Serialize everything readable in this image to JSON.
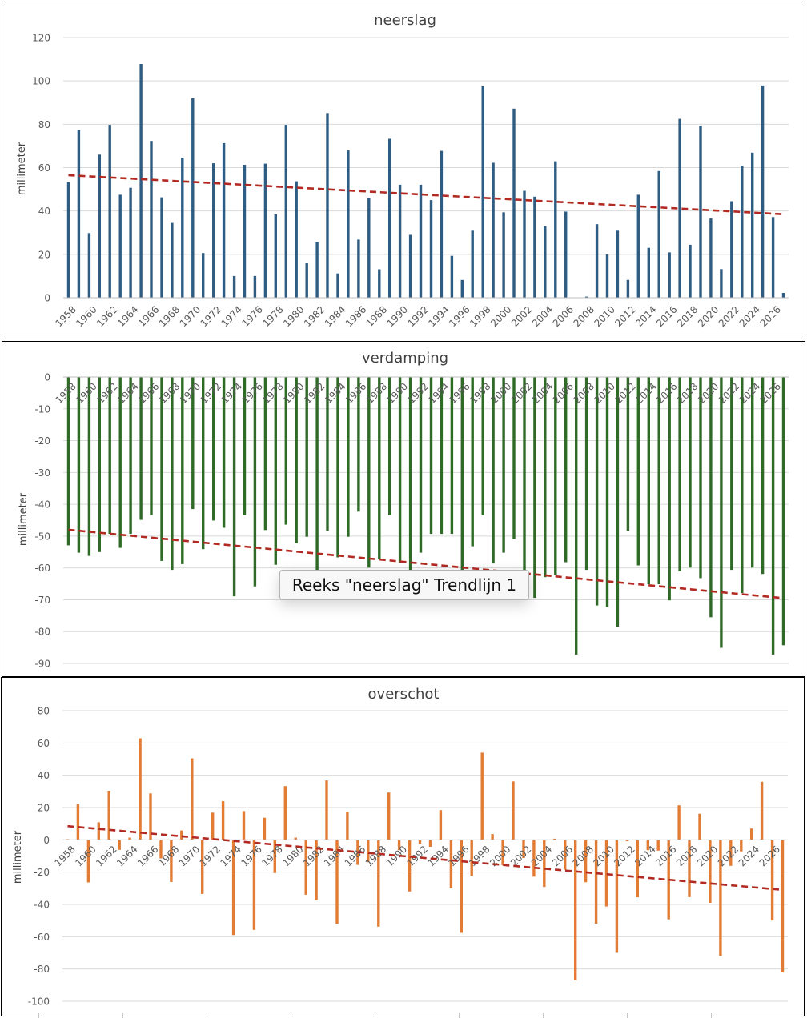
{
  "chart_data": [
    {
      "type": "bar",
      "title": "neerslag",
      "ylabel": "millimeter",
      "ylim": [
        0,
        120
      ],
      "yticks": [
        0,
        20,
        40,
        60,
        80,
        100,
        120
      ],
      "grid": true,
      "color": "#2e5c82",
      "trend_color": "#b22a22",
      "trend": {
        "start": 56.5,
        "end": 38.5
      },
      "x_start": 1958,
      "x_end": 2026,
      "values": [
        53.3,
        77.4,
        29.8,
        66.0,
        79.7,
        47.5,
        50.7,
        107.8,
        72.3,
        46.3,
        34.5,
        64.6,
        92.0,
        20.6,
        62.0,
        71.3,
        10.0,
        61.3,
        10.0,
        61.8,
        38.4,
        79.7,
        53.7,
        16.2,
        25.8,
        85.2,
        11.2,
        67.9,
        26.8,
        46.1,
        13.1,
        73.3,
        52.1,
        29.0,
        52.1,
        45.0,
        67.7,
        19.3,
        8.2,
        30.9,
        97.5,
        62.2,
        39.4,
        87.2,
        49.3,
        46.6,
        33.0,
        62.9,
        39.7,
        0.1,
        0.5,
        33.9,
        20.0,
        30.9,
        8.2,
        47.5,
        23.0,
        58.4,
        20.9,
        82.5,
        24.4,
        79.4,
        36.5,
        13.2,
        44.5,
        60.7,
        66.9,
        97.9,
        37.2,
        2.2
      ]
    },
    {
      "type": "bar",
      "title": "verdamping",
      "ylabel": "millimeter",
      "ylim": [
        -90,
        0
      ],
      "yticks": [
        0,
        -10,
        -20,
        -30,
        -40,
        -50,
        -60,
        -70,
        -80,
        -90
      ],
      "grid": true,
      "color": "#2f6b27",
      "trend_color": "#b22a22",
      "trend": {
        "start": -48,
        "end": -69.5
      },
      "x_start": 1958,
      "x_end": 2026,
      "values": [
        -52.9,
        -55.2,
        -56.2,
        -55.0,
        -49.3,
        -53.7,
        -49.3,
        -44.9,
        -43.5,
        -57.8,
        -60.6,
        -58.8,
        -41.5,
        -54.1,
        -45.1,
        -47.4,
        -68.9,
        -43.5,
        -65.8,
        -48.1,
        -59.0,
        -46.4,
        -52.3,
        -50.2,
        -61.3,
        -48.4,
        -56.7,
        -50.2,
        -42.3,
        -59.9,
        -57.3,
        -43.5,
        -58.5,
        -60.6,
        -55.2,
        -49.3,
        -49.3,
        -49.3,
        -65.8,
        -53.2,
        -43.5,
        -58.6,
        -55.2,
        -51.0,
        -60.6,
        -69.4,
        -62.9,
        -62.2,
        -58.2,
        -87.2,
        -60.6,
        -71.8,
        -72.3,
        -78.5,
        -48.4,
        -59.2,
        -65.1,
        -65.1,
        -70.2,
        -61.1,
        -59.9,
        -63.2,
        -75.5,
        -85.1,
        -60.6,
        -67.9,
        -59.9,
        -61.9,
        -87.2,
        -84.3
      ]
    },
    {
      "type": "bar",
      "title": "overschot",
      "ylabel": "millimeter",
      "ylim": [
        -100,
        80
      ],
      "yticks": [
        80,
        60,
        40,
        20,
        0,
        -20,
        -40,
        -60,
        -80,
        -100
      ],
      "grid": true,
      "color": "#e27c35",
      "trend_color": "#b22a22",
      "trend": {
        "start": 8.5,
        "end": -31
      },
      "x_start": 1958,
      "x_end": 2026,
      "values": [
        0.4,
        22.2,
        -26.4,
        10.9,
        30.4,
        -6.2,
        1.4,
        62.9,
        28.8,
        -11.5,
        -26.1,
        5.8,
        50.5,
        -33.5,
        16.9,
        23.9,
        -59.0,
        17.8,
        -55.8,
        13.7,
        -20.6,
        33.3,
        1.4,
        -34.0,
        -37.5,
        36.8,
        -52.0,
        17.5,
        -15.5,
        -13.8,
        -53.8,
        29.3,
        -6.4,
        -32.0,
        -2.8,
        -4.3,
        18.4,
        -30.0,
        -57.6,
        -22.3,
        54.0,
        3.6,
        -15.8,
        36.2,
        -11.3,
        -22.8,
        -29.2,
        0.7,
        -18.5,
        -87.1,
        -26.3,
        -51.9,
        -41.3,
        -70.0,
        -0.9,
        -35.6,
        -6.4,
        -6.7,
        -49.3,
        21.4,
        -35.5,
        16.2,
        -39.0,
        -71.9,
        -16.1,
        -7.2,
        7.0,
        36.0,
        -50.0,
        -82.1
      ]
    }
  ],
  "tooltip": {
    "text": "Reeks \"neerslag\" Trendlijn 1"
  }
}
